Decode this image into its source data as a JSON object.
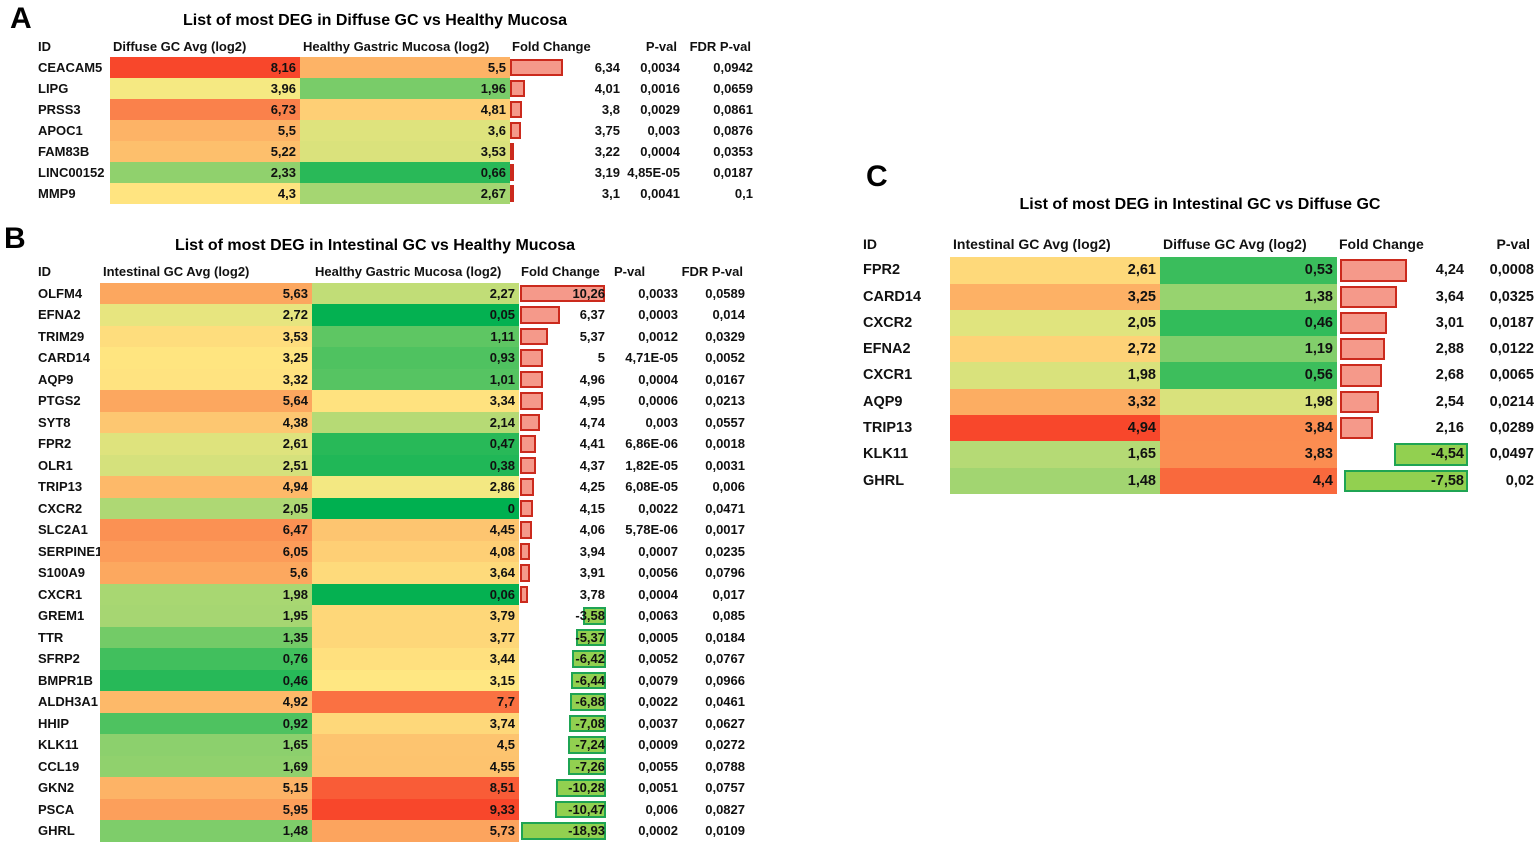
{
  "figure": {
    "description_labels": [
      "A",
      "B",
      "C"
    ]
  },
  "colors": {
    "scale_green": "#00B050",
    "scale_yellow": "#FFEB84",
    "scale_red": "#F8472B",
    "pos_bar_fill": "#F5998A",
    "pos_bar_border": "#CB2A1D",
    "neg_bar_fill": "#92D050",
    "neg_bar_border": "#1FA453",
    "text": "#111111"
  },
  "panels": [
    {
      "letter": "A",
      "title": "List of most DEG in Diffuse GC vs Healthy Mucosa",
      "headers": [
        "ID",
        "Diffuse GC Avg (log2)",
        "Healthy Gastric Mucosa (log2)",
        "Fold Change",
        "P-val",
        "FDR P-val"
      ],
      "scale": {
        "min": 0,
        "mid": 4.13,
        "max": 8.16
      },
      "bar": {
        "posZero": 3.05,
        "posScale": 16,
        "negZero": 0,
        "negScale": 0,
        "maxW": 108
      },
      "rows": [
        {
          "id": "CEACAM5",
          "v1": "8,16",
          "v2": "5,5",
          "fc": "6,34",
          "p": "0,0034",
          "fdr": "0,0942"
        },
        {
          "id": "LIPG",
          "v1": "3,96",
          "v2": "1,96",
          "fc": "4,01",
          "p": "0,0016",
          "fdr": "0,0659"
        },
        {
          "id": "PRSS3",
          "v1": "6,73",
          "v2": "4,81",
          "fc": "3,8",
          "p": "0,0029",
          "fdr": "0,0861"
        },
        {
          "id": "APOC1",
          "v1": "5,5",
          "v2": "3,6",
          "fc": "3,75",
          "p": "0,003",
          "fdr": "0,0876"
        },
        {
          "id": "FAM83B",
          "v1": "5,22",
          "v2": "3,53",
          "fc": "3,22",
          "p": "0,0004",
          "fdr": "0,0353"
        },
        {
          "id": "LINC00152",
          "v1": "2,33",
          "v2": "0,66",
          "fc": "3,19",
          "p": "4,85E-05",
          "fdr": "0,0187"
        },
        {
          "id": "MMP9",
          "v1": "4,3",
          "v2": "2,67",
          "fc": "3,1",
          "p": "0,0041",
          "fdr": "0,1"
        }
      ]
    },
    {
      "letter": "B",
      "title": "List of most DEG in Intestinal GC vs Healthy Mucosa",
      "headers": [
        "ID",
        "Intestinal GC Avg (log2)",
        "Healthy Gastric Mucosa (log2)",
        "Fold Change",
        "P-val",
        "FDR P-val"
      ],
      "scale": {
        "min": 0,
        "mid": 3.0,
        "max": 9.33
      },
      "bar": {
        "posZero": 3.1,
        "posScale": 12.25,
        "negZero": -2.11,
        "negScale": 4.04,
        "maxW": 85
      },
      "rows": [
        {
          "id": "OLFM4",
          "v1": "5,63",
          "v2": "2,27",
          "fc": "10,26",
          "p": "0,0033",
          "fdr": "0,0589"
        },
        {
          "id": "EFNA2",
          "v1": "2,72",
          "v2": "0,05",
          "fc": "6,37",
          "p": "0,0003",
          "fdr": "0,014"
        },
        {
          "id": "TRIM29",
          "v1": "3,53",
          "v2": "1,11",
          "fc": "5,37",
          "p": "0,0012",
          "fdr": "0,0329"
        },
        {
          "id": "CARD14",
          "v1": "3,25",
          "v2": "0,93",
          "fc": "5",
          "p": "4,71E-05",
          "fdr": "0,0052"
        },
        {
          "id": "AQP9",
          "v1": "3,32",
          "v2": "1,01",
          "fc": "4,96",
          "p": "0,0004",
          "fdr": "0,0167"
        },
        {
          "id": "PTGS2",
          "v1": "5,64",
          "v2": "3,34",
          "fc": "4,95",
          "p": "0,0006",
          "fdr": "0,0213"
        },
        {
          "id": "SYT8",
          "v1": "4,38",
          "v2": "2,14",
          "fc": "4,74",
          "p": "0,003",
          "fdr": "0,0557"
        },
        {
          "id": "FPR2",
          "v1": "2,61",
          "v2": "0,47",
          "fc": "4,41",
          "p": "6,86E-06",
          "fdr": "0,0018"
        },
        {
          "id": "OLR1",
          "v1": "2,51",
          "v2": "0,38",
          "fc": "4,37",
          "p": "1,82E-05",
          "fdr": "0,0031"
        },
        {
          "id": "TRIP13",
          "v1": "4,94",
          "v2": "2,86",
          "fc": "4,25",
          "p": "6,08E-05",
          "fdr": "0,006"
        },
        {
          "id": "CXCR2",
          "v1": "2,05",
          "v2": "0",
          "fc": "4,15",
          "p": "0,0022",
          "fdr": "0,0471"
        },
        {
          "id": "SLC2A1",
          "v1": "6,47",
          "v2": "4,45",
          "fc": "4,06",
          "p": "5,78E-06",
          "fdr": "0,0017"
        },
        {
          "id": "SERPINE1",
          "v1": "6,05",
          "v2": "4,08",
          "fc": "3,94",
          "p": "0,0007",
          "fdr": "0,0235"
        },
        {
          "id": "S100A9",
          "v1": "5,6",
          "v2": "3,64",
          "fc": "3,91",
          "p": "0,0056",
          "fdr": "0,0796"
        },
        {
          "id": "CXCR1",
          "v1": "1,98",
          "v2": "0,06",
          "fc": "3,78",
          "p": "0,0004",
          "fdr": "0,017"
        },
        {
          "id": "GREM1",
          "v1": "1,95",
          "v2": "3,79",
          "fc": "-3,58",
          "p": "0,0063",
          "fdr": "0,085"
        },
        {
          "id": "TTR",
          "v1": "1,35",
          "v2": "3,77",
          "fc": "-5,37",
          "p": "0,0005",
          "fdr": "0,0184"
        },
        {
          "id": "SFRP2",
          "v1": "0,76",
          "v2": "3,44",
          "fc": "-6,42",
          "p": "0,0052",
          "fdr": "0,0767"
        },
        {
          "id": "BMPR1B",
          "v1": "0,46",
          "v2": "3,15",
          "fc": "-6,44",
          "p": "0,0079",
          "fdr": "0,0966"
        },
        {
          "id": "ALDH3A1",
          "v1": "4,92",
          "v2": "7,7",
          "fc": "-6,88",
          "p": "0,0022",
          "fdr": "0,0461"
        },
        {
          "id": "HHIP",
          "v1": "0,92",
          "v2": "3,74",
          "fc": "-7,08",
          "p": "0,0037",
          "fdr": "0,0627"
        },
        {
          "id": "KLK11",
          "v1": "1,65",
          "v2": "4,5",
          "fc": "-7,24",
          "p": "0,0009",
          "fdr": "0,0272"
        },
        {
          "id": "CCL19",
          "v1": "1,69",
          "v2": "4,55",
          "fc": "-7,26",
          "p": "0,0055",
          "fdr": "0,0788"
        },
        {
          "id": "GKN2",
          "v1": "5,15",
          "v2": "8,51",
          "fc": "-10,28",
          "p": "0,0051",
          "fdr": "0,0757"
        },
        {
          "id": "PSCA",
          "v1": "5,95",
          "v2": "9,33",
          "fc": "-10,47",
          "p": "0,006",
          "fdr": "0,0827"
        },
        {
          "id": "GHRL",
          "v1": "1,48",
          "v2": "5,73",
          "fc": "-18,93",
          "p": "0,0002",
          "fdr": "0,0109"
        }
      ]
    },
    {
      "letter": "C",
      "title": "List of most DEG in Intestinal GC vs Diffuse GC",
      "headers": [
        "ID",
        "Intestinal GC Avg (log2)",
        "Diffuse GC Avg (log2)",
        "Fold Change",
        "P-val"
      ],
      "scale": {
        "min": 0,
        "mid": 2.33,
        "max": 4.94
      },
      "bar": {
        "posZero": 0.14,
        "posScale": 16.35,
        "negZero": 0,
        "negScale": 16.35,
        "maxW": 126
      },
      "rows": [
        {
          "id": "FPR2",
          "v1": "2,61",
          "v2": "0,53",
          "fc": "4,24",
          "p": "0,0008"
        },
        {
          "id": "CARD14",
          "v1": "3,25",
          "v2": "1,38",
          "fc": "3,64",
          "p": "0,0325"
        },
        {
          "id": "CXCR2",
          "v1": "2,05",
          "v2": "0,46",
          "fc": "3,01",
          "p": "0,0187"
        },
        {
          "id": "EFNA2",
          "v1": "2,72",
          "v2": "1,19",
          "fc": "2,88",
          "p": "0,0122"
        },
        {
          "id": "CXCR1",
          "v1": "1,98",
          "v2": "0,56",
          "fc": "2,68",
          "p": "0,0065"
        },
        {
          "id": "AQP9",
          "v1": "3,32",
          "v2": "1,98",
          "fc": "2,54",
          "p": "0,0214"
        },
        {
          "id": "TRIP13",
          "v1": "4,94",
          "v2": "3,84",
          "fc": "2,16",
          "p": "0,0289"
        },
        {
          "id": "KLK11",
          "v1": "1,65",
          "v2": "3,83",
          "fc": "-4,54",
          "p": "0,0497"
        },
        {
          "id": "GHRL",
          "v1": "1,48",
          "v2": "4,4",
          "fc": "-7,58",
          "p": "0,02"
        }
      ]
    }
  ]
}
